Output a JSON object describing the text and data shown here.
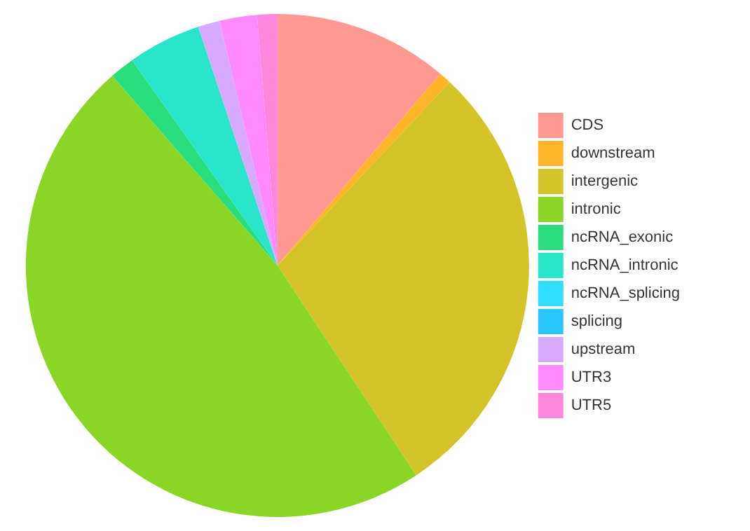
{
  "chart_data": {
    "type": "pie",
    "categories": [
      "CDS",
      "downstream",
      "intergenic",
      "intronic",
      "ncRNA_exonic",
      "ncRNA_intronic",
      "ncRNA_splicing",
      "splicing",
      "upstream",
      "UTR3",
      "UTR5"
    ],
    "values": [
      11.2,
      0.8,
      28.7,
      47.9,
      1.6,
      4.7,
      0,
      0,
      1.4,
      2.4,
      1.3
    ],
    "colors": [
      "#ff9a92",
      "#ffb52a",
      "#d4c42a",
      "#8ad626",
      "#2ade7e",
      "#28e4c8",
      "#2eddff",
      "#28c8ff",
      "#d8aaff",
      "#ff8aff",
      "#ff88dd"
    ],
    "legend": "right"
  }
}
